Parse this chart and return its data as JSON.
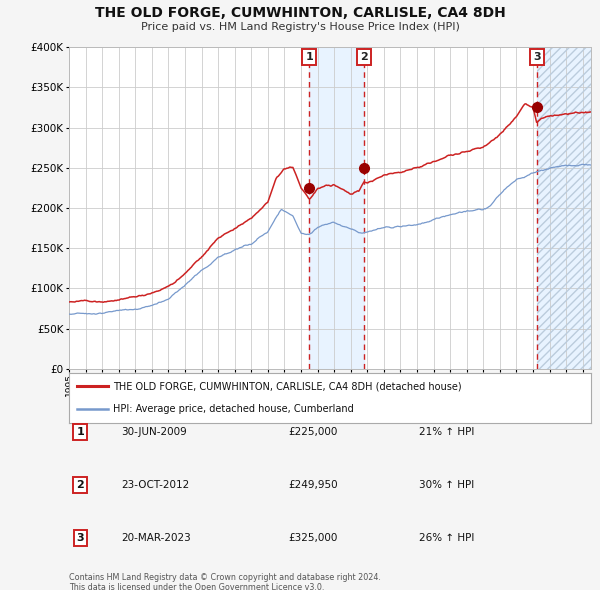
{
  "title": "THE OLD FORGE, CUMWHINTON, CARLISLE, CA4 8DH",
  "subtitle": "Price paid vs. HM Land Registry's House Price Index (HPI)",
  "red_label": "THE OLD FORGE, CUMWHINTON, CARLISLE, CA4 8DH (detached house)",
  "blue_label": "HPI: Average price, detached house, Cumberland",
  "footer1": "Contains HM Land Registry data © Crown copyright and database right 2024.",
  "footer2": "This data is licensed under the Open Government Licence v3.0.",
  "sales": [
    {
      "num": 1,
      "date": "30-JUN-2009",
      "price": "225,000",
      "hpi_pct": "21%",
      "year": 2009.5
    },
    {
      "num": 2,
      "date": "23-OCT-2012",
      "price": "249,950",
      "hpi_pct": "30%",
      "year": 2012.8
    },
    {
      "num": 3,
      "date": "20-MAR-2023",
      "price": "325,000",
      "hpi_pct": "26%",
      "year": 2023.22
    }
  ],
  "ylim": [
    0,
    400000
  ],
  "xlim_start": 1995.0,
  "xlim_end": 2026.5,
  "yticks": [
    0,
    50000,
    100000,
    150000,
    200000,
    250000,
    300000,
    350000,
    400000
  ],
  "ytick_labels": [
    "£0",
    "£50K",
    "£100K",
    "£150K",
    "£200K",
    "£250K",
    "£300K",
    "£350K",
    "£400K"
  ],
  "bg_color": "#f5f5f5",
  "plot_bg": "#ffffff",
  "red_color": "#cc2222",
  "blue_color": "#7799cc",
  "grid_color": "#cccccc",
  "shade_color": "#ddeeff",
  "hatch_edgecolor": "#bbccdd"
}
